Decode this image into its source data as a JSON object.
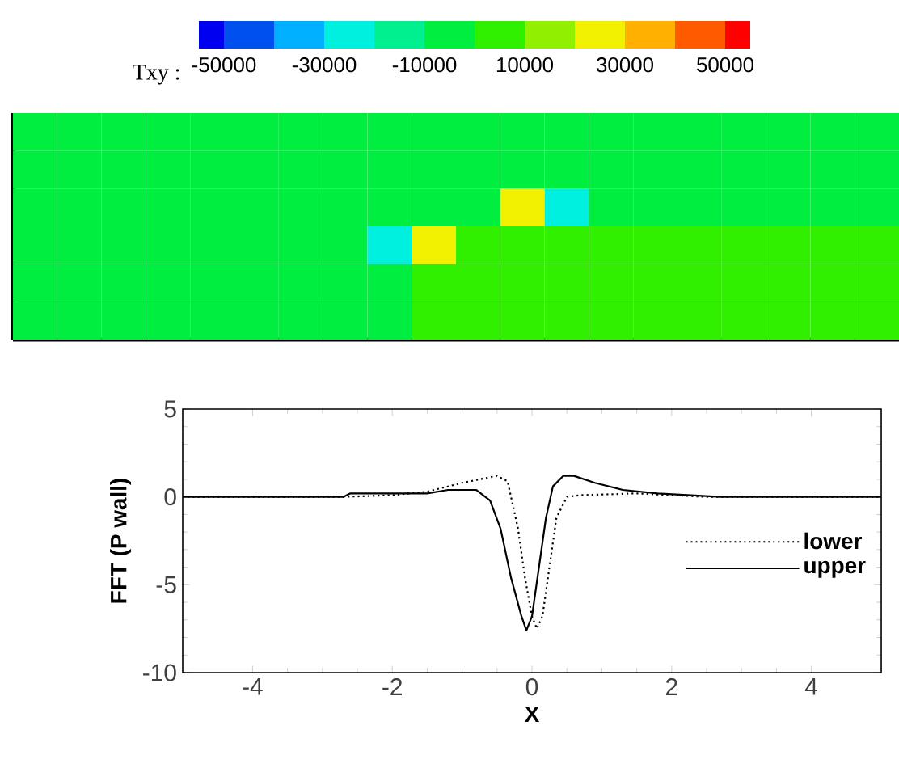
{
  "chart_data": [
    {
      "type": "heatmap",
      "clabel": "Txy :",
      "clim": [
        -55000,
        55000
      ],
      "cticks": [
        -50000,
        -30000,
        -10000,
        10000,
        30000,
        50000
      ],
      "colors": [
        "#0000f0",
        "#0050f0",
        "#00b0ff",
        "#00f0e0",
        "#00f090",
        "#00ee40",
        "#30f000",
        "#90f000",
        "#f0f000",
        "#ffb000",
        "#ff5a00",
        "#ff0000"
      ],
      "categories": [
        null,
        null,
        null,
        null,
        null,
        null,
        null,
        null,
        null,
        null,
        null,
        null,
        null,
        null,
        null,
        null,
        null,
        null,
        null,
        null
      ],
      "y_categories": [
        null,
        null,
        null,
        null,
        null,
        null
      ],
      "cells": [
        [
          -5000,
          -5000,
          -5000,
          -5000,
          -5000,
          -5000,
          -5000,
          -5000,
          -5000,
          -5000,
          -5000,
          -5000,
          -5000,
          -5000,
          -5000,
          -5000,
          -5000,
          -5000,
          -5000,
          -5000
        ],
        [
          -5000,
          -5000,
          -5000,
          -5000,
          -5000,
          -5000,
          -5000,
          -5000,
          -5000,
          -5000,
          -5000,
          -5000,
          -5000,
          -5000,
          -5000,
          -5000,
          -5000,
          -5000,
          -5000,
          -5000
        ],
        [
          -5000,
          -5000,
          -5000,
          -5000,
          -5000,
          -5000,
          -5000,
          -5000,
          -5000,
          -5000,
          -5000,
          25000,
          -25000,
          -5000,
          -5000,
          -5000,
          -5000,
          -5000,
          -5000,
          -5000
        ],
        [
          -5000,
          -5000,
          -5000,
          -5000,
          -5000,
          -5000,
          -5000,
          -5000,
          -25000,
          25000,
          5000,
          5000,
          5000,
          5000,
          5000,
          5000,
          5000,
          5000,
          5000,
          5000
        ],
        [
          -5000,
          -5000,
          -5000,
          -5000,
          -5000,
          -5000,
          -5000,
          -5000,
          -5000,
          5000,
          5000,
          5000,
          5000,
          5000,
          5000,
          5000,
          5000,
          5000,
          5000,
          5000
        ],
        [
          -5000,
          -5000,
          -5000,
          -5000,
          -5000,
          -5000,
          -5000,
          -5000,
          -5000,
          5000,
          5000,
          5000,
          5000,
          5000,
          5000,
          5000,
          5000,
          5000,
          5000,
          5000
        ]
      ]
    },
    {
      "type": "line",
      "xlabel": "X",
      "ylabel": "FFT (P wall)",
      "xlim": [
        -5,
        5
      ],
      "ylim": [
        -10,
        5
      ],
      "xticks": [
        -4,
        -2,
        0,
        2,
        4
      ],
      "yticks": [
        -10,
        -5,
        0,
        5
      ],
      "legend": "right",
      "grid": false,
      "series": [
        {
          "name": "lower",
          "color": "#000000",
          "line_style": "dotted",
          "x": [
            -5,
            -2.7,
            -2,
            -1.5,
            -1,
            -0.5,
            -0.35,
            -0.2,
            -0.1,
            0,
            0.07,
            0.15,
            0.25,
            0.35,
            0.5,
            0.7,
            1.5,
            2.5,
            5
          ],
          "values": [
            0,
            0,
            0.1,
            0.3,
            0.8,
            1.2,
            0.9,
            -1.8,
            -4.6,
            -6.8,
            -7.5,
            -6.8,
            -4,
            -1.2,
            0,
            0.1,
            0.2,
            0,
            0
          ]
        },
        {
          "name": "upper",
          "color": "#000000",
          "line_style": "solid",
          "x": [
            -5,
            -2.7,
            -2.6,
            -1.5,
            -1.2,
            -0.8,
            -0.6,
            -0.45,
            -0.3,
            -0.15,
            -0.08,
            0,
            0.1,
            0.2,
            0.3,
            0.45,
            0.6,
            0.9,
            1.3,
            1.8,
            2.7,
            5
          ],
          "values": [
            0,
            0,
            0.2,
            0.2,
            0.4,
            0.4,
            -0.2,
            -1.8,
            -4.6,
            -6.8,
            -7.6,
            -6.8,
            -4,
            -1.2,
            0.6,
            1.2,
            1.2,
            0.8,
            0.4,
            0.2,
            0,
            0
          ]
        }
      ]
    }
  ]
}
